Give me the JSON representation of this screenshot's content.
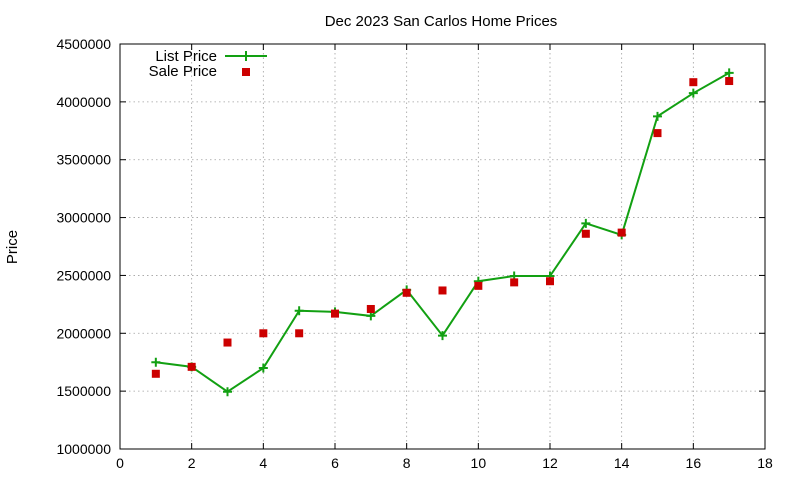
{
  "chart_data": {
    "type": "line",
    "title": "Dec 2023 San Carlos Home Prices",
    "xlabel": "",
    "ylabel": "Price",
    "xlim": [
      0,
      18
    ],
    "ylim": [
      1000000,
      4500000
    ],
    "grid": true,
    "legend_position": "top-left",
    "x_ticks": [
      "0",
      "2",
      "4",
      "6",
      "8",
      "10",
      "12",
      "14",
      "16",
      "18"
    ],
    "y_ticks": [
      "1000000",
      "1500000",
      "2000000",
      "2500000",
      "3000000",
      "3500000",
      "4000000",
      "4500000"
    ],
    "series": [
      {
        "name": "List Price",
        "style": "line+cross",
        "color": "#12a012",
        "x": [
          1,
          2,
          3,
          4,
          5,
          6,
          7,
          8,
          9,
          10,
          11,
          12,
          13,
          14,
          15,
          16,
          17
        ],
        "y": [
          1750000,
          1710000,
          1495000,
          1700000,
          2195000,
          2185000,
          2150000,
          2375000,
          1980000,
          2450000,
          2495000,
          2495000,
          2950000,
          2850000,
          3875000,
          4075000,
          4250000
        ]
      },
      {
        "name": "Sale Price",
        "style": "square",
        "color": "#cc0000",
        "x": [
          1,
          2,
          3,
          4,
          5,
          6,
          7,
          8,
          9,
          10,
          11,
          12,
          13,
          14,
          15,
          16,
          17
        ],
        "y": [
          1650000,
          1710000,
          1920000,
          2000000,
          2000000,
          2170000,
          2210000,
          2350000,
          2370000,
          2410000,
          2440000,
          2450000,
          2860000,
          2870000,
          3730000,
          4170000,
          4180000
        ]
      }
    ]
  }
}
